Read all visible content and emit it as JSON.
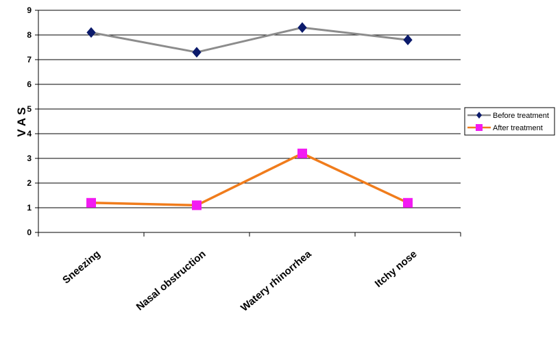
{
  "chart_data": {
    "type": "line",
    "title": "",
    "xlabel": "",
    "ylabel": "V A S",
    "ylim": [
      0,
      9
    ],
    "yticks": [
      0,
      1,
      2,
      3,
      4,
      5,
      6,
      7,
      8,
      9
    ],
    "grid": "horizontal",
    "legend_position": "right",
    "categories": [
      "Sneezing",
      "Nasal obstruction",
      "Watery rhinorrhea",
      "Itchy nose"
    ],
    "series": [
      {
        "name": "Before treatment",
        "values": [
          8.1,
          7.3,
          8.3,
          7.8
        ],
        "line_color": "#8c8c8c",
        "marker_color": "#0b1a6b",
        "marker": "diamond"
      },
      {
        "name": "After treatment",
        "values": [
          1.2,
          1.1,
          3.2,
          1.2
        ],
        "line_color": "#f07c1c",
        "marker_color": "#f21bf2",
        "marker": "square"
      }
    ]
  }
}
